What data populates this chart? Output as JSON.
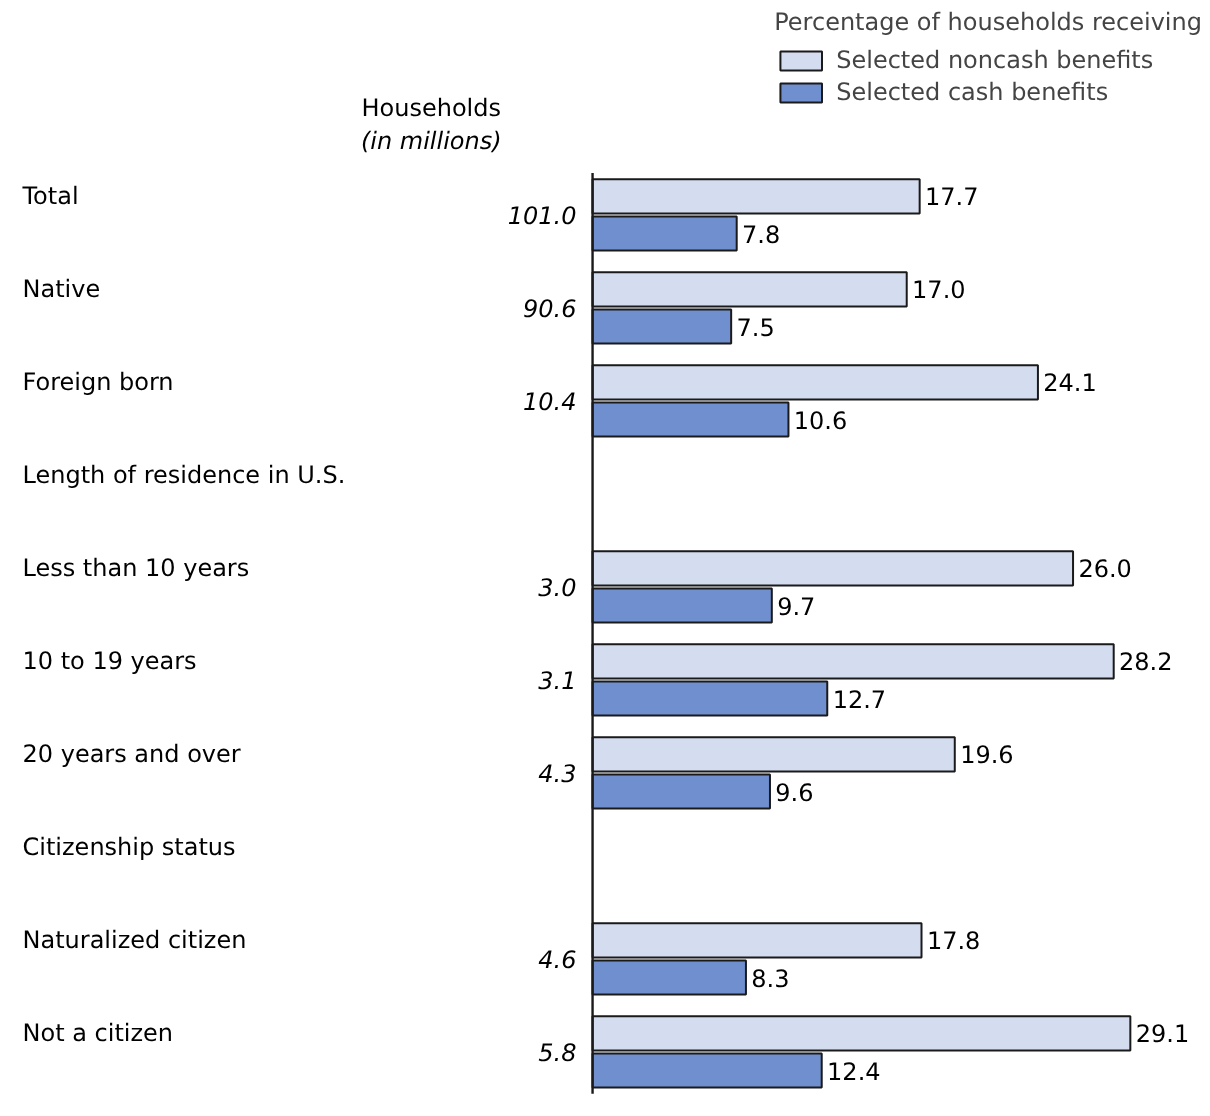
{
  "chart_data": {
    "type": "bar",
    "orientation": "horizontal",
    "legend_title": "Percentage of households receiving",
    "legend": "top right",
    "tick_labels": "y",
    "grid": false,
    "categories": [
      "Total",
      "Native",
      "Foreign born",
      "Length of residence in U.S.",
      "Less than 10 years",
      "10 to 19 years",
      "20 years and over",
      "Citizenship status",
      "Naturalized citizen",
      "Not a citizen"
    ],
    "series": [
      {
        "name": "Selected noncash benefits",
        "color": "#d4dcef",
        "values": [
          17.7,
          17.0,
          24.1,
          null,
          26.0,
          28.2,
          19.6,
          null,
          17.8,
          29.1
        ],
        "value_labels": [
          "17.7",
          "17.0",
          "24.1",
          null,
          "26.0",
          "28.2",
          "19.6",
          null,
          "17.8",
          "29.1"
        ]
      },
      {
        "name": "Selected cash benefits",
        "color": "#6f8fce",
        "values": [
          7.8,
          7.5,
          10.6,
          null,
          9.7,
          12.7,
          9.6,
          null,
          8.3,
          12.4
        ],
        "value_labels": [
          "7.8",
          "7.5",
          "10.6",
          null,
          "9.7",
          "12.7",
          "9.6",
          null,
          "8.3",
          "12.4"
        ]
      }
    ],
    "annotations": [
      "Households (in millions)",
      "101.0",
      "90.6",
      "10.4",
      "3.0",
      "3.1",
      "4.3",
      "4.6",
      "5.8"
    ]
  }
}
